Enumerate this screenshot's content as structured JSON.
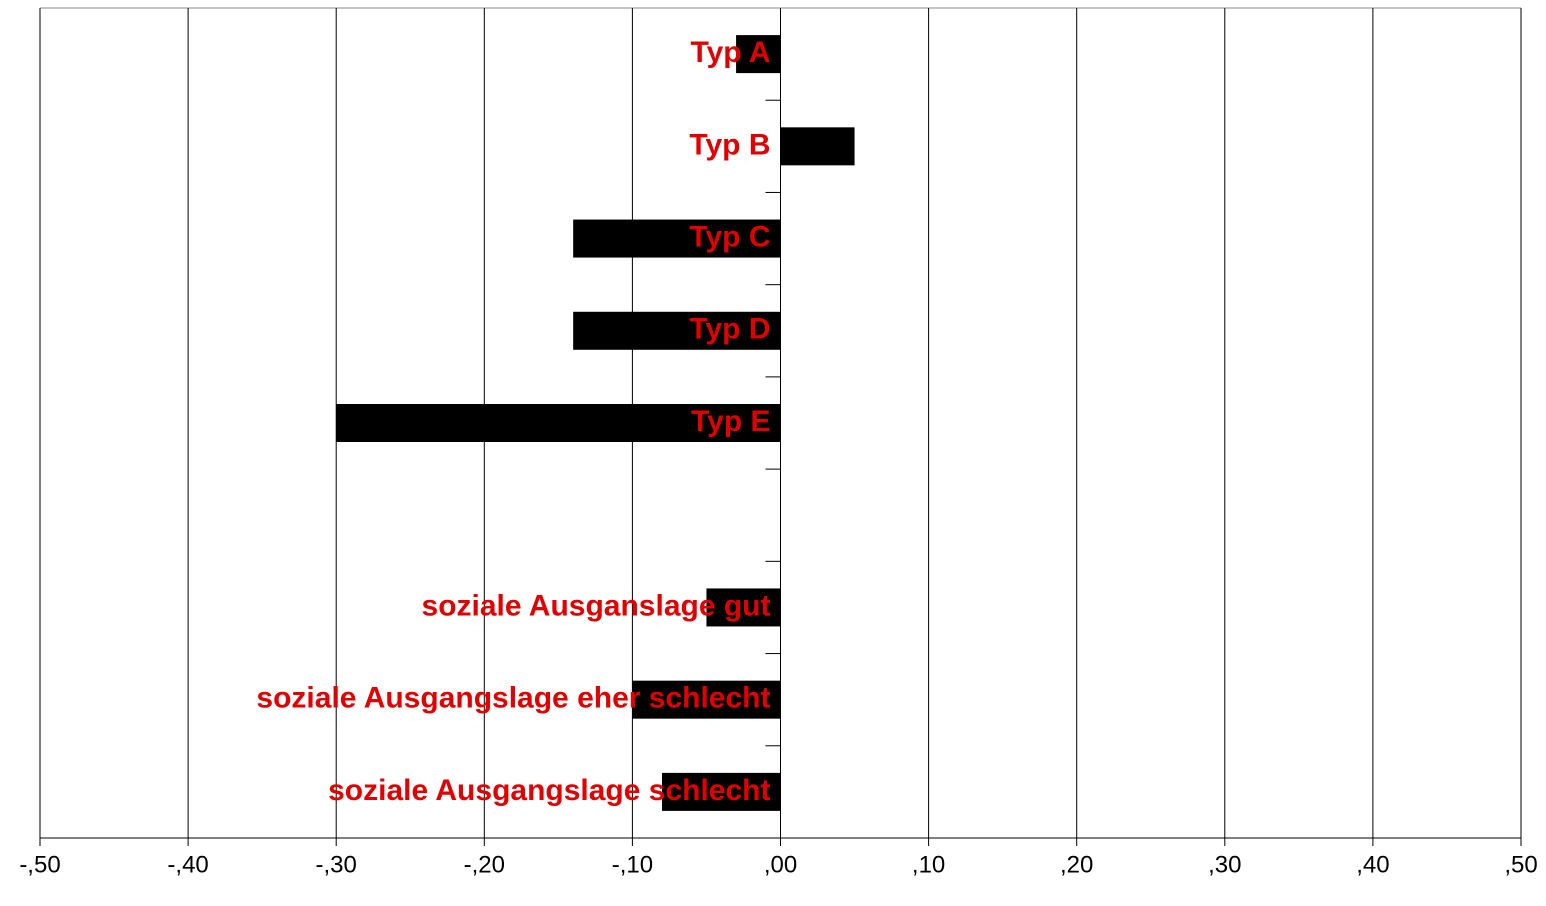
{
  "chart_data": {
    "type": "hbar",
    "categories": [
      "Typ A",
      "Typ B",
      "Typ C",
      "Typ D",
      "Typ E",
      null,
      "soziale Ausganslage gut",
      "soziale Ausgangslage eher schlecht",
      "soziale Ausgangslage schlecht"
    ],
    "values": [
      -0.03,
      0.05,
      -0.14,
      -0.14,
      -0.3,
      null,
      -0.05,
      -0.1,
      -0.08
    ],
    "color": "#000000",
    "label_color": "#e00000",
    "xlim": [
      -0.5,
      0.5
    ],
    "xticks": [
      {
        "value": -0.5,
        "label": "-,50"
      },
      {
        "value": -0.4,
        "label": "-,40"
      },
      {
        "value": -0.3,
        "label": "-,30"
      },
      {
        "value": -0.2,
        "label": "-,20"
      },
      {
        "value": -0.1,
        "label": "-,10"
      },
      {
        "value": 0,
        "label": ",00"
      },
      {
        "value": 0.1,
        "label": ",10"
      },
      {
        "value": 0.2,
        "label": ",20"
      },
      {
        "value": 0.3,
        "label": ",30"
      },
      {
        "value": 0.4,
        "label": ",40"
      },
      {
        "value": 0.5,
        "label": ",50"
      }
    ],
    "grid": true
  }
}
